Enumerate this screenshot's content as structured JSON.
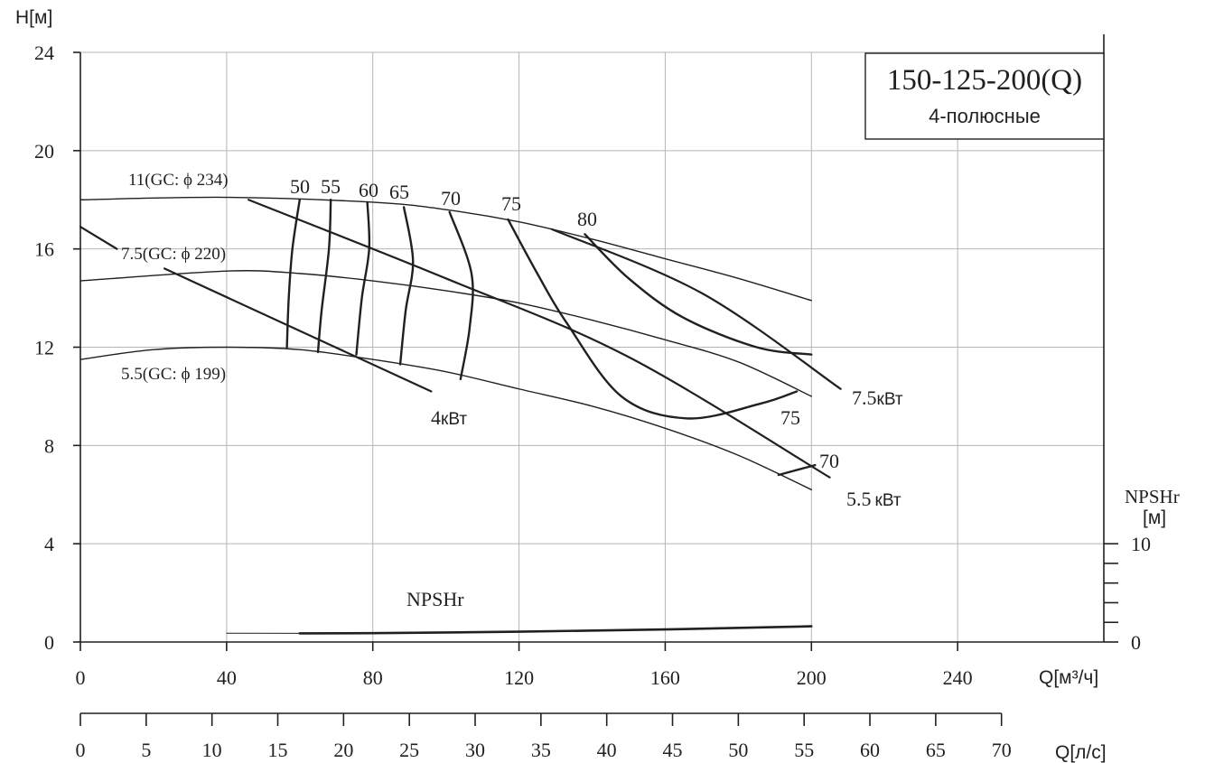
{
  "chart_data": {
    "type": "line",
    "title": "150-125-200(Q)",
    "subtitle": "4-полюсные",
    "ylabel": "H[м]",
    "xlabel": "Q[м³/ч]",
    "x2label": "Q[л/с]",
    "y2label_line1": "NPSHr",
    "y2label_line2": "[м]",
    "xlim": [
      0,
      280
    ],
    "ylim": [
      0,
      24
    ],
    "x_ticks": [
      0,
      40,
      80,
      120,
      160,
      200,
      240
    ],
    "y_ticks": [
      0,
      4,
      8,
      12,
      16,
      20,
      24
    ],
    "x2_ticks": [
      0,
      5,
      10,
      15,
      20,
      25,
      30,
      35,
      40,
      45,
      50,
      55,
      60,
      65,
      70
    ],
    "y2_ticks": [
      0,
      10
    ],
    "grid": true,
    "head_curves": [
      {
        "name": "11(GC: ϕ 234)",
        "points": [
          [
            0,
            18.0
          ],
          [
            40,
            18.1
          ],
          [
            80,
            17.9
          ],
          [
            100,
            17.6
          ],
          [
            120,
            17.1
          ],
          [
            140,
            16.4
          ],
          [
            160,
            15.6
          ],
          [
            180,
            14.8
          ],
          [
            200,
            13.9
          ]
        ]
      },
      {
        "name": "7.5(GC: ϕ 220)",
        "points": [
          [
            0,
            14.7
          ],
          [
            40,
            15.1
          ],
          [
            60,
            15.0
          ],
          [
            80,
            14.7
          ],
          [
            100,
            14.3
          ],
          [
            120,
            13.8
          ],
          [
            140,
            13.1
          ],
          [
            160,
            12.3
          ],
          [
            180,
            11.4
          ],
          [
            200,
            10.0
          ]
        ]
      },
      {
        "name": "5.5(GC: ϕ 199)",
        "points": [
          [
            0,
            11.5
          ],
          [
            20,
            11.9
          ],
          [
            40,
            12.0
          ],
          [
            60,
            11.9
          ],
          [
            80,
            11.5
          ],
          [
            100,
            11.0
          ],
          [
            120,
            10.3
          ],
          [
            140,
            9.6
          ],
          [
            160,
            8.7
          ],
          [
            180,
            7.6
          ],
          [
            200,
            6.2
          ]
        ]
      }
    ],
    "efficiency_curves": [
      {
        "name": "50",
        "points": [
          [
            60,
            18.0
          ],
          [
            58,
            16.0
          ],
          [
            57,
            14.0
          ],
          [
            56.5,
            12.0
          ]
        ]
      },
      {
        "name": "55",
        "points": [
          [
            68.5,
            18.0
          ],
          [
            68,
            16.0
          ],
          [
            66,
            13.5
          ],
          [
            65,
            11.8
          ]
        ]
      },
      {
        "name": "60",
        "points": [
          [
            78.5,
            17.9
          ],
          [
            79,
            16.0
          ],
          [
            77,
            14.0
          ],
          [
            75.5,
            11.7
          ]
        ]
      },
      {
        "name": "65",
        "points": [
          [
            88.5,
            17.7
          ],
          [
            91,
            15.5
          ],
          [
            89,
            13.5
          ],
          [
            87.5,
            11.3
          ]
        ]
      },
      {
        "name": "70",
        "points": [
          [
            101,
            17.5
          ],
          [
            107,
            15.0
          ],
          [
            106.5,
            12.8
          ],
          [
            104,
            10.7
          ]
        ]
      },
      {
        "name": "75",
        "points": [
          [
            117,
            17.2
          ],
          [
            125,
            15.0
          ],
          [
            133,
            13.0
          ],
          [
            148,
            10.0
          ],
          [
            166,
            9.1
          ],
          [
            186,
            9.7
          ],
          [
            196,
            10.2
          ]
        ]
      },
      {
        "name": "80",
        "points": [
          [
            138,
            16.6
          ],
          [
            150,
            14.8
          ],
          [
            165,
            13.2
          ],
          [
            185,
            12.0
          ],
          [
            200,
            11.7
          ]
        ]
      },
      {
        "name": "70",
        "points": [
          [
            191,
            6.8
          ],
          [
            201,
            7.2
          ]
        ]
      }
    ],
    "power_curves": [
      {
        "name": "4кВт",
        "points": [
          [
            0,
            16.9
          ],
          [
            10,
            16.0
          ]
        ],
        "continuation": [
          [
            23,
            15.2
          ],
          [
            96,
            10.2
          ]
        ]
      },
      {
        "name": "5.5кВт",
        "points": [
          [
            46,
            18.0
          ],
          [
            100,
            14.8
          ],
          [
            150,
            11.6
          ],
          [
            205,
            6.7
          ]
        ]
      },
      {
        "name": "7.5кВт",
        "points": [
          [
            129,
            16.8
          ],
          [
            170,
            14.2
          ],
          [
            208,
            10.3
          ]
        ]
      }
    ],
    "npsh_curve": {
      "name": "NPSHr",
      "points_m": [
        [
          40,
          0.9
        ],
        [
          60,
          0.88
        ],
        [
          80,
          0.9
        ],
        [
          120,
          1.05
        ],
        [
          160,
          1.28
        ],
        [
          200,
          1.6
        ]
      ],
      "solid_from_x": 60
    },
    "labels": {
      "eff_50": "50",
      "eff_55": "55",
      "eff_60": "60",
      "eff_65": "65",
      "eff_70": "70",
      "eff_75": "75",
      "eff_80": "80",
      "eff_75_right": "75",
      "eff_70_right": "70",
      "imp_234": "11(GC: ϕ 234)",
      "imp_220": "7.5(GC: ϕ 220)",
      "imp_199": "5.5(GC: ϕ 199)",
      "pow_4_num": "4",
      "pow_4_unit": "кВт",
      "pow_55_num": "5.5",
      "pow_55_unit": "кВт",
      "pow_75_num": "7.5",
      "pow_75_unit": "кВт",
      "npsh": "NPSHr"
    },
    "colors": {
      "ink": "#231f20",
      "grid": "#b5b5b5"
    }
  }
}
